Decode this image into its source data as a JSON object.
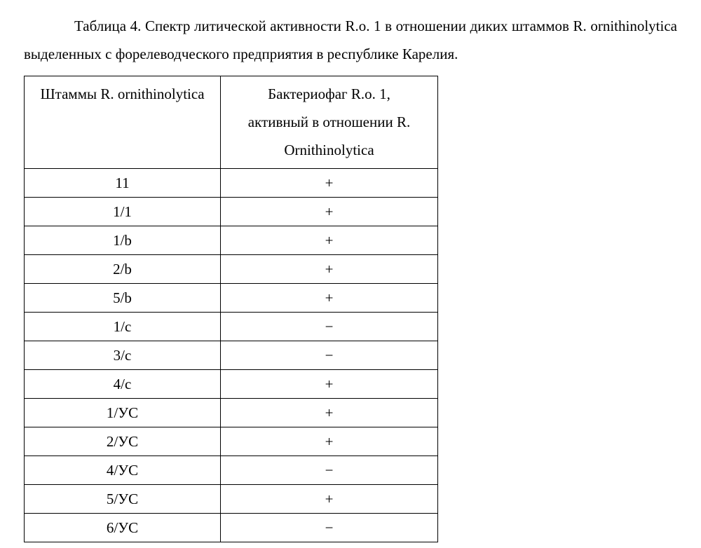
{
  "caption_text": "Таблица 4. Спектр литической активности R.o. 1 в отношении диких штаммов R. ornithinolytica выделенных с форелеводческого предприятия в республике Карелия.",
  "table": {
    "headers": {
      "col0": "Штаммы R. ornithinolytica",
      "col1_line1": "Бактериофаг R.o. 1,",
      "col1_line2": "активный в отношении R.",
      "col1_line3": "Ornithinolytica"
    },
    "rows": [
      {
        "strain": "11",
        "activity": "+"
      },
      {
        "strain": "1/1",
        "activity": "+"
      },
      {
        "strain": "1/b",
        "activity": "+"
      },
      {
        "strain": "2/b",
        "activity": "+"
      },
      {
        "strain": "5/b",
        "activity": "+"
      },
      {
        "strain": "1/c",
        "activity": "−"
      },
      {
        "strain": "3/c",
        "activity": "−"
      },
      {
        "strain": "4/c",
        "activity": "+"
      },
      {
        "strain": "1/УС",
        "activity": "+"
      },
      {
        "strain": "2/УС",
        "activity": "+"
      },
      {
        "strain": "4/УС",
        "activity": "−"
      },
      {
        "strain": "5/УС",
        "activity": "+"
      },
      {
        "strain": "6/УС",
        "activity": "−"
      }
    ]
  }
}
